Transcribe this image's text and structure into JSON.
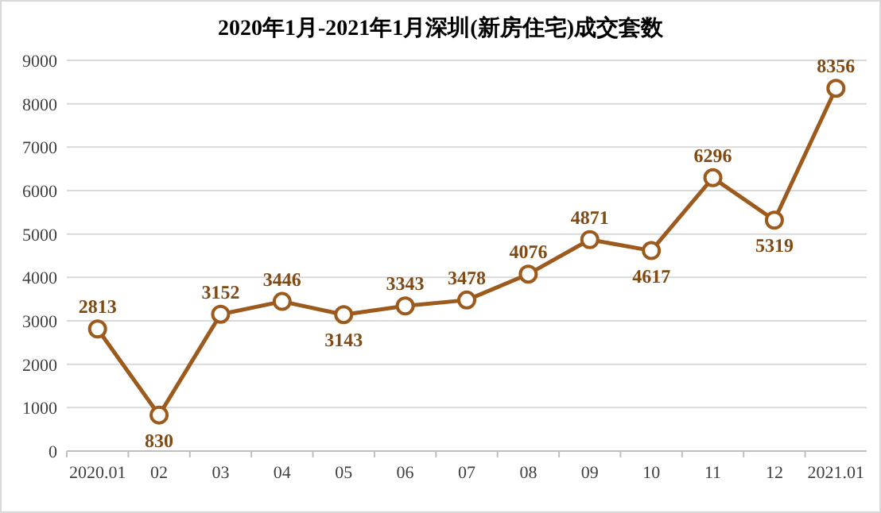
{
  "chart_data": {
    "type": "line",
    "title": "2020年1月-2021年1月深圳(新房住宅)成交套数",
    "categories": [
      "2020.01",
      "02",
      "03",
      "04",
      "05",
      "06",
      "07",
      "08",
      "09",
      "10",
      "11",
      "12",
      "2021.01"
    ],
    "series": [
      {
        "color": "#9c5a1c",
        "values": [
          2813,
          830,
          3152,
          3446,
          3143,
          3343,
          3478,
          4076,
          4871,
          4617,
          6296,
          5319,
          8356
        ]
      }
    ],
    "ylim": [
      0,
      9000
    ],
    "yticks": [
      0,
      1000,
      2000,
      3000,
      4000,
      5000,
      6000,
      7000,
      8000,
      9000
    ],
    "grid": "y",
    "marker": "circle",
    "line_style": "solid",
    "data_labels": true
  }
}
